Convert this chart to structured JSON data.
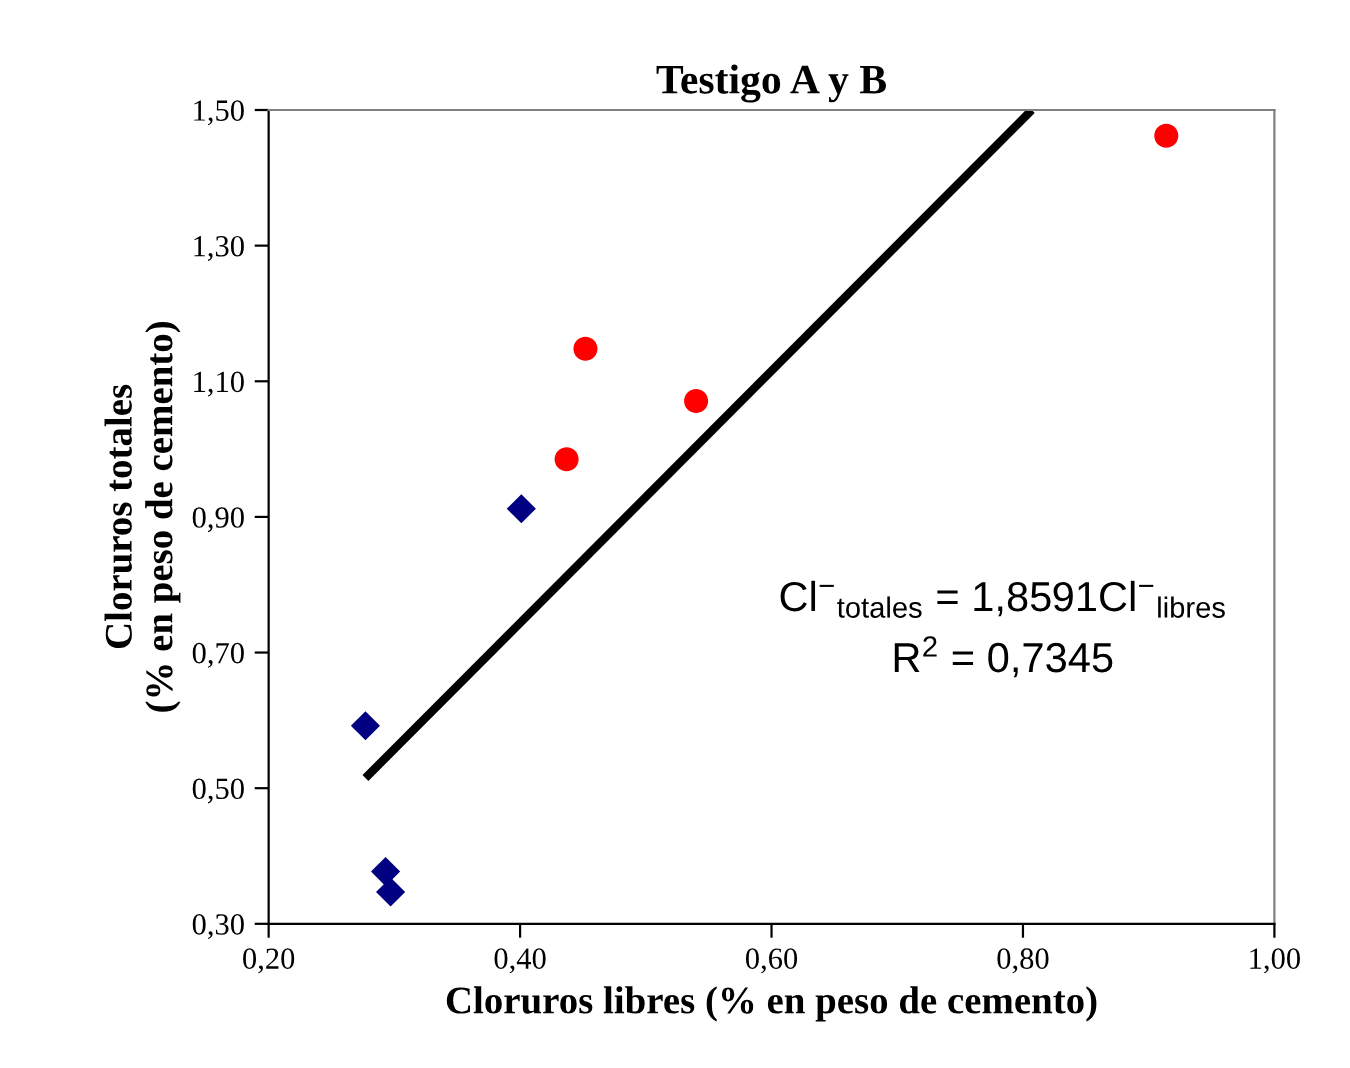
{
  "chart_data": {
    "type": "scatter",
    "title": "Testigo A y B",
    "xlabel": "Cloruros libres (% en peso de cemento)",
    "ylabel": "Cloruros totales\n(% en peso de cemento)",
    "series": [
      {
        "color": "#000080",
        "marker": "diamond",
        "x": [
          0.277,
          0.293,
          0.297,
          0.401
        ],
        "values": [
          0.592,
          0.377,
          0.347,
          0.912
        ]
      },
      {
        "color": "#ff0000",
        "marker": "circle",
        "x": [
          0.437,
          0.452,
          0.54,
          0.914
        ],
        "values": [
          0.985,
          1.148,
          1.071,
          1.462
        ]
      },
      {
        "type": "line",
        "color": "#000000",
        "marker": "none",
        "x": [
          0.277,
          0.807
        ],
        "values": [
          0.515,
          1.5
        ]
      }
    ],
    "annotations": [
      {
        "text": "Cl$^{−}$$_{totales}$ = 1,8591Cl$^{−}$$_{libres}$\nR$^{2}$ = 0,7345"
      }
    ],
    "xlim": [
      0.2,
      1.0
    ],
    "xticks": [
      {
        "value": 0.2,
        "label": "0,20"
      },
      {
        "value": 0.4,
        "label": "0,40"
      },
      {
        "value": 0.6,
        "label": "0,60"
      },
      {
        "value": 0.8,
        "label": "0,80"
      },
      {
        "value": 1.0,
        "label": "1,00"
      }
    ],
    "ylim": [
      0.3,
      1.5
    ],
    "yticks": [
      {
        "value": 0.3,
        "label": "0,30"
      },
      {
        "value": 0.5,
        "label": "0,50"
      },
      {
        "value": 0.7,
        "label": "0,70"
      },
      {
        "value": 0.9,
        "label": "0,90"
      },
      {
        "value": 1.1,
        "label": "1,10"
      },
      {
        "value": 1.3,
        "label": "1,30"
      },
      {
        "value": 1.5,
        "label": "1,50"
      }
    ],
    "grid": false
  }
}
